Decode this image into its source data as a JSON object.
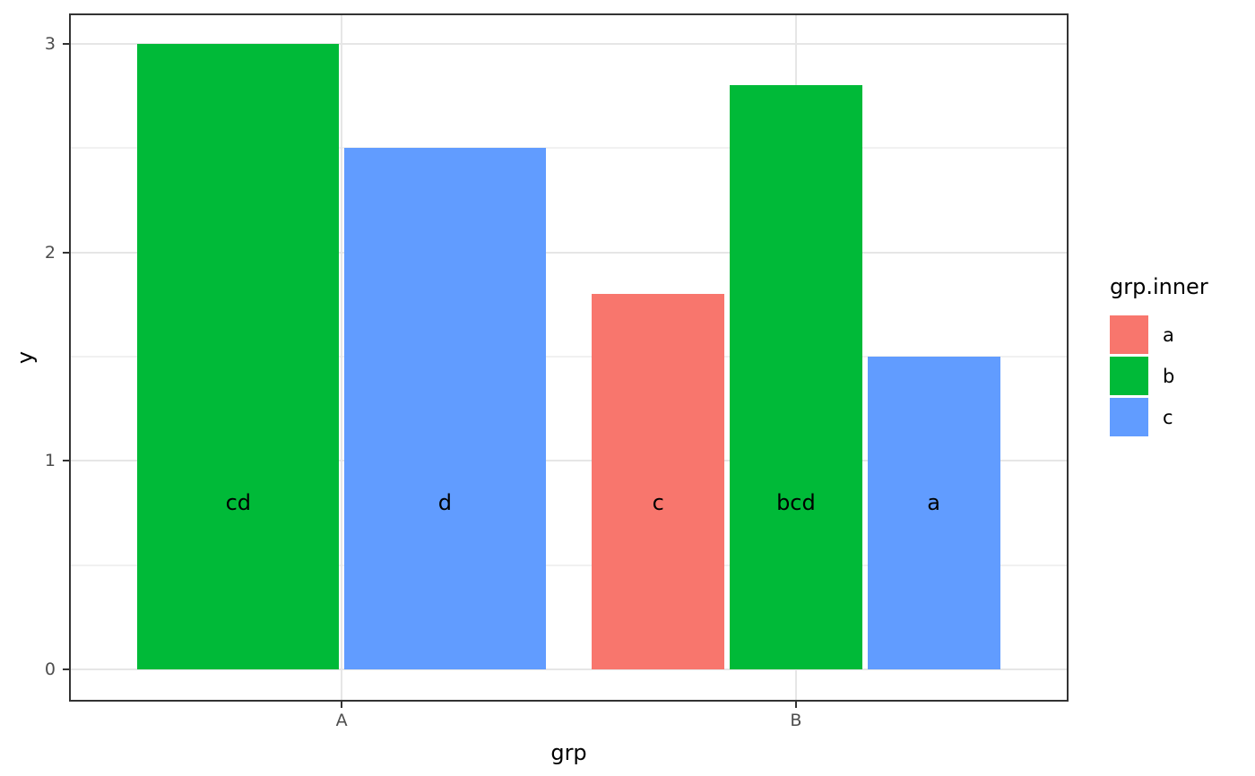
{
  "chart_data": {
    "type": "bar",
    "title": "",
    "xlabel": "grp",
    "ylabel": "y",
    "categories": [
      "A",
      "B"
    ],
    "y_ticks": [
      0,
      1,
      2,
      3
    ],
    "y_minor_gridlines": [
      0.5,
      1.5,
      2.5
    ],
    "ylim": [
      -0.15,
      3.15
    ],
    "grid": true,
    "legend_position": "right",
    "legend_title": "grp.inner",
    "legend_entries": [
      "a",
      "b",
      "c"
    ],
    "palette": {
      "a": "#F8766D",
      "b": "#00BA38",
      "c": "#619CFF"
    },
    "bars": [
      {
        "grp": "A",
        "grp_inner": "b",
        "y": 3.0,
        "text_label": "cd"
      },
      {
        "grp": "A",
        "grp_inner": "c",
        "y": 2.5,
        "text_label": "d"
      },
      {
        "grp": "B",
        "grp_inner": "a",
        "y": 1.8,
        "text_label": "c"
      },
      {
        "grp": "B",
        "grp_inner": "b",
        "y": 2.8,
        "text_label": "bcd"
      },
      {
        "grp": "B",
        "grp_inner": "c",
        "y": 1.5,
        "text_label": "a"
      }
    ],
    "bar_label_y": 0.8,
    "colors": {
      "grid_major": "#E6E6E6",
      "grid_minor": "#F1F1F1",
      "panel_border": "#333333",
      "tick": "#333333",
      "tick_label": "#4D4D4D",
      "text": "#000000",
      "background": "#FFFFFF"
    }
  }
}
